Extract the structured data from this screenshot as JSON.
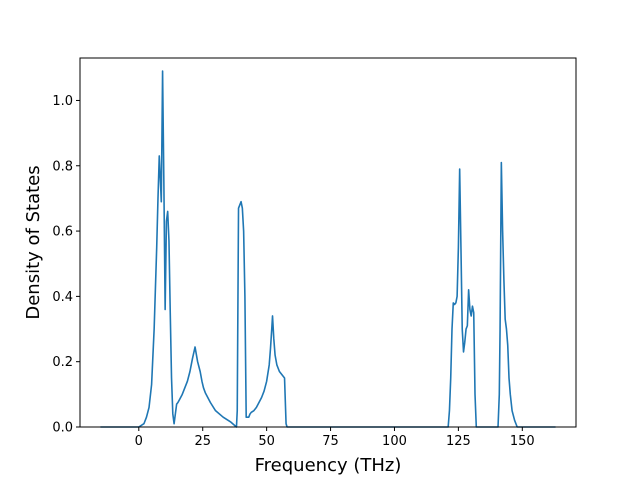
{
  "chart_data": {
    "type": "line",
    "title": "",
    "xlabel": "Frequency (THz)",
    "ylabel": "Density of States",
    "xlim": [
      -23,
      171
    ],
    "ylim": [
      0.0,
      1.13
    ],
    "xticks": [
      0,
      25,
      50,
      75,
      100,
      125,
      150
    ],
    "yticks": [
      0.0,
      0.2,
      0.4,
      0.6,
      0.8,
      1.0
    ],
    "xtick_labels": [
      "0",
      "25",
      "50",
      "75",
      "100",
      "125",
      "150"
    ],
    "ytick_labels": [
      "0.0",
      "0.2",
      "0.4",
      "0.6",
      "0.8",
      "1.0"
    ],
    "grid": false,
    "legend": "none",
    "series": [
      {
        "color": "#1f77b4",
        "x": [
          -15,
          -5,
          0,
          2,
          3,
          4,
          5,
          6,
          7,
          7.5,
          8,
          8.3,
          8.8,
          9.3,
          9.8,
          10.3,
          10.8,
          11.3,
          11.8,
          12.3,
          12.8,
          13.3,
          13.8,
          14.3,
          14.8,
          15.3,
          16,
          17,
          18,
          19,
          20,
          21,
          22,
          23,
          24,
          24.7,
          25.3,
          26,
          27,
          28,
          30,
          33,
          36,
          38.2,
          38.5,
          39,
          39.5,
          40,
          40.5,
          41,
          41.5,
          42,
          43,
          43.5,
          44,
          45,
          46,
          47,
          48,
          49,
          50,
          51,
          51.5,
          52,
          52.3,
          52.8,
          53.3,
          54,
          55,
          56,
          57,
          57.3,
          57.6,
          58,
          60,
          80,
          100,
          115,
          120,
          121,
          121.5,
          122,
          122.5,
          123,
          123.5,
          124,
          124.5,
          125,
          125.5,
          126,
          126.5,
          127,
          127.5,
          128,
          128.5,
          129,
          129.5,
          130,
          130.5,
          131,
          131.5,
          132,
          133,
          138,
          140,
          140.5,
          141,
          141.3,
          141.8,
          142.3,
          142.8,
          143.3,
          143.8,
          144.3,
          144.8,
          145.3,
          146,
          147,
          148,
          150,
          155,
          163
        ],
        "y": [
          0.0,
          0.0,
          0.0,
          0.01,
          0.03,
          0.06,
          0.13,
          0.3,
          0.55,
          0.7,
          0.83,
          0.78,
          0.69,
          1.09,
          0.75,
          0.36,
          0.63,
          0.66,
          0.57,
          0.35,
          0.15,
          0.04,
          0.01,
          0.04,
          0.07,
          0.075,
          0.085,
          0.1,
          0.12,
          0.14,
          0.17,
          0.21,
          0.245,
          0.2,
          0.17,
          0.14,
          0.12,
          0.105,
          0.09,
          0.075,
          0.05,
          0.03,
          0.015,
          0.0,
          0.05,
          0.67,
          0.68,
          0.69,
          0.67,
          0.6,
          0.4,
          0.03,
          0.03,
          0.04,
          0.045,
          0.05,
          0.06,
          0.075,
          0.09,
          0.11,
          0.14,
          0.19,
          0.24,
          0.3,
          0.34,
          0.27,
          0.22,
          0.19,
          0.17,
          0.16,
          0.15,
          0.08,
          0.01,
          0.0,
          0.0,
          0.0,
          0.0,
          0.0,
          0.0,
          0.0,
          0.05,
          0.15,
          0.3,
          0.38,
          0.375,
          0.38,
          0.4,
          0.55,
          0.79,
          0.55,
          0.3,
          0.23,
          0.26,
          0.3,
          0.31,
          0.42,
          0.36,
          0.34,
          0.37,
          0.35,
          0.1,
          0.0,
          0.0,
          0.0,
          0.0,
          0.0,
          0.1,
          0.3,
          0.81,
          0.6,
          0.45,
          0.33,
          0.3,
          0.25,
          0.15,
          0.1,
          0.05,
          0.02,
          0.0,
          0.0,
          0.0,
          0.0
        ]
      }
    ]
  }
}
